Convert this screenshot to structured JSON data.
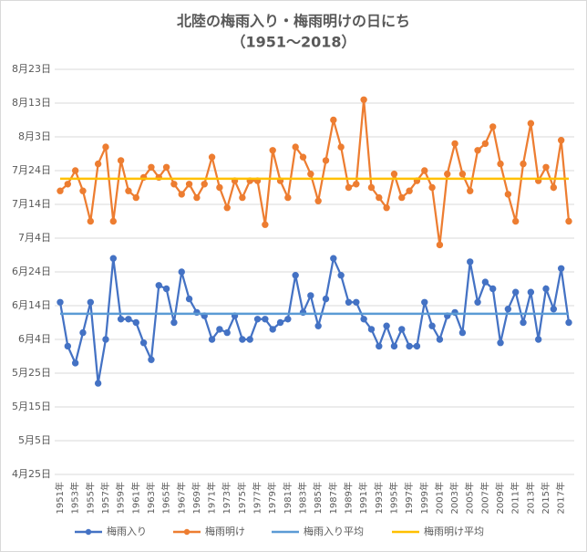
{
  "chart_data": {
    "type": "line",
    "title": "北陸の梅雨入り・梅雨明けの日にち",
    "subtitle": "（1951～2018）",
    "categories": [
      "1951年",
      null,
      "1953年",
      null,
      "1955年",
      null,
      "1957年",
      null,
      "1959年",
      null,
      "1961年",
      null,
      "1963年",
      null,
      "1965年",
      null,
      "1967年",
      null,
      "1969年",
      null,
      "1971年",
      null,
      "1973年",
      null,
      "1975年",
      null,
      "1977年",
      null,
      "1979年",
      null,
      "1981年",
      null,
      "1983年",
      null,
      "1985年",
      null,
      "1987年",
      null,
      "1989年",
      null,
      "1991年",
      null,
      "1993年",
      null,
      "1995年",
      null,
      "1997年",
      null,
      "1999年",
      null,
      "2001年",
      null,
      "2003年",
      null,
      "2005年",
      null,
      "2007年",
      null,
      "2009年",
      null,
      "2011年",
      null,
      "2013年",
      null,
      "2015年",
      null,
      "2017年",
      null
    ],
    "series": [
      {
        "name": "梅雨入り",
        "color": "#4472c4",
        "marker": true,
        "values": [
          166,
          153,
          148,
          157,
          166,
          142,
          155,
          179,
          161,
          161,
          160,
          154,
          149,
          171,
          170,
          160,
          175,
          167,
          163,
          162,
          155,
          158,
          157,
          162,
          155,
          155,
          161,
          161,
          158,
          160,
          161,
          174,
          163,
          168,
          159,
          167,
          179,
          174,
          166,
          166,
          161,
          158,
          153,
          159,
          153,
          158,
          153,
          153,
          166,
          159,
          155,
          162,
          163,
          157,
          178,
          166,
          172,
          170,
          154,
          164,
          169,
          160,
          169,
          155,
          170,
          164,
          176,
          160
        ]
      },
      {
        "name": "梅雨明け",
        "color": "#ed7d31",
        "marker": true,
        "values": [
          199,
          201,
          205,
          199,
          190,
          207,
          212,
          190,
          208,
          199,
          197,
          203,
          206,
          203,
          206,
          201,
          198,
          201,
          197,
          201,
          209,
          200,
          194,
          202,
          197,
          202,
          202,
          189,
          211,
          202,
          197,
          212,
          209,
          204,
          196,
          208,
          220,
          212,
          200,
          201,
          226,
          200,
          197,
          194,
          204,
          197,
          199,
          202,
          205,
          200,
          183,
          204,
          213,
          204,
          199,
          211,
          213,
          218,
          207,
          198,
          190,
          207,
          219,
          202,
          206,
          200,
          214,
          190
        ]
      },
      {
        "name": "梅雨入り平均",
        "color": "#5b9bd5",
        "marker": false,
        "values": [
          162.6,
          162.6,
          162.6,
          162.6,
          162.6,
          162.6,
          162.6,
          162.6,
          162.6,
          162.6,
          162.6,
          162.6,
          162.6,
          162.6,
          162.6,
          162.6,
          162.6,
          162.6,
          162.6,
          162.6,
          162.6,
          162.6,
          162.6,
          162.6,
          162.6,
          162.6,
          162.6,
          162.6,
          162.6,
          162.6,
          162.6,
          162.6,
          162.6,
          162.6,
          162.6,
          162.6,
          162.6,
          162.6,
          162.6,
          162.6,
          162.6,
          162.6,
          162.6,
          162.6,
          162.6,
          162.6,
          162.6,
          162.6,
          162.6,
          162.6,
          162.6,
          162.6,
          162.6,
          162.6,
          162.6,
          162.6,
          162.6,
          162.6,
          162.6,
          162.6,
          162.6,
          162.6,
          162.6,
          162.6,
          162.6,
          162.6,
          162.6,
          162.6
        ]
      },
      {
        "name": "梅雨明け平均",
        "color": "#ffc000",
        "marker": false,
        "values": [
          202.6,
          202.6,
          202.6,
          202.6,
          202.6,
          202.6,
          202.6,
          202.6,
          202.6,
          202.6,
          202.6,
          202.6,
          202.6,
          202.6,
          202.6,
          202.6,
          202.6,
          202.6,
          202.6,
          202.6,
          202.6,
          202.6,
          202.6,
          202.6,
          202.6,
          202.6,
          202.6,
          202.6,
          202.6,
          202.6,
          202.6,
          202.6,
          202.6,
          202.6,
          202.6,
          202.6,
          202.6,
          202.6,
          202.6,
          202.6,
          202.6,
          202.6,
          202.6,
          202.6,
          202.6,
          202.6,
          202.6,
          202.6,
          202.6,
          202.6,
          202.6,
          202.6,
          202.6,
          202.6,
          202.6,
          202.6,
          202.6,
          202.6,
          202.6,
          202.6,
          202.6,
          202.6,
          202.6,
          202.6,
          202.6,
          202.6,
          202.6,
          202.6
        ]
      }
    ],
    "ylim": [
      115,
      235
    ],
    "yticks": [
      {
        "value": 115,
        "label": "4月25日"
      },
      {
        "value": 125,
        "label": "5月5日"
      },
      {
        "value": 135,
        "label": "5月15日"
      },
      {
        "value": 145,
        "label": "5月25日"
      },
      {
        "value": 155,
        "label": "6月4日"
      },
      {
        "value": 165,
        "label": "6月14日"
      },
      {
        "value": 175,
        "label": "6月24日"
      },
      {
        "value": 185,
        "label": "7月4日"
      },
      {
        "value": 195,
        "label": "7月14日"
      },
      {
        "value": 205,
        "label": "7月24日"
      },
      {
        "value": 215,
        "label": "8月3日"
      },
      {
        "value": 225,
        "label": "8月13日"
      },
      {
        "value": 235,
        "label": "8月23日"
      }
    ],
    "grid": true,
    "legend": "bottom"
  }
}
